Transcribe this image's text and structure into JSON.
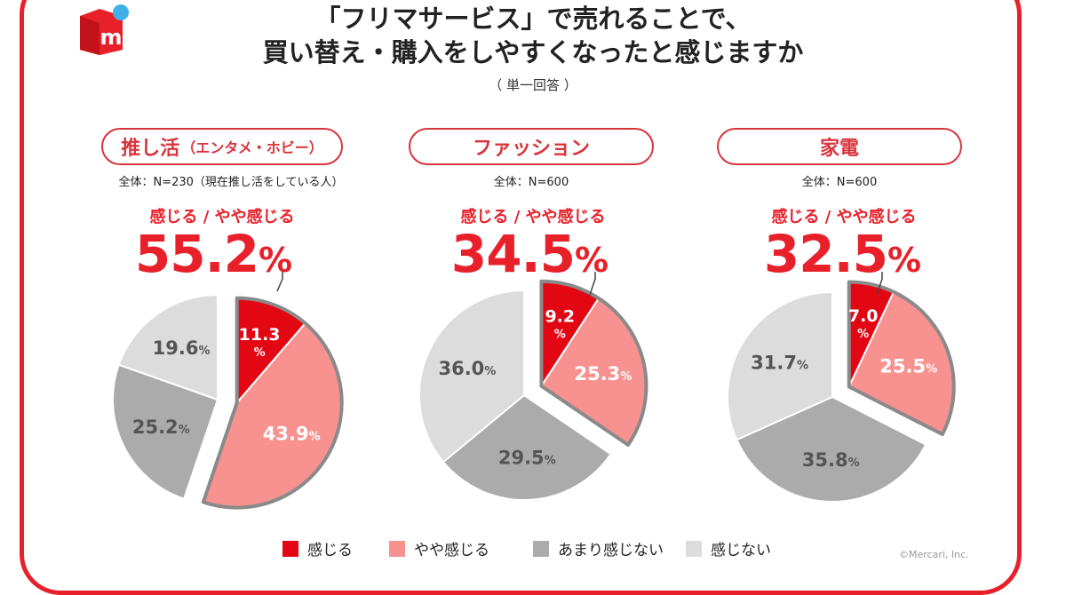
{
  "title": {
    "line1": "「フリマサービス」で売れることで、",
    "line2": "買い替え・購入をしやすくなったと感じますか",
    "note": "（ 単一回答 ）"
  },
  "brand": {
    "logo_letter": "m",
    "accent": "#e8202a",
    "dot_color": "#3fb0e8"
  },
  "colors": {
    "kanjiru": "#e30613",
    "yaya": "#f79290",
    "amari": "#ababab",
    "kanjinai": "#dcdcdc"
  },
  "legend": [
    {
      "label": "感じる",
      "color": "#e30613"
    },
    {
      "label": "やや感じる",
      "color": "#f79290"
    },
    {
      "label": "あまり感じない",
      "color": "#ababab"
    },
    {
      "label": "感じない",
      "color": "#dcdcdc"
    }
  ],
  "credit": "©Mercari, Inc.",
  "chart_data": [
    {
      "type": "pie",
      "title": "推し活",
      "title_note": "（エンタメ・ホビー）",
      "sample": "全体：N=230（現在推し活をしている人）",
      "agree_label": "感じる /  やや感じる",
      "agree_value": "55.2",
      "unit": "%",
      "categories": [
        "感じる",
        "やや感じる",
        "あまり感じない",
        "感じない"
      ],
      "values": [
        11.3,
        43.9,
        25.2,
        19.6
      ],
      "labels": [
        "11.3",
        "43.9",
        "25.2",
        "19.6"
      ]
    },
    {
      "type": "pie",
      "title": "ファッション",
      "sample": "全体：N=600",
      "agree_label": "感じる /  やや感じる",
      "agree_value": "34.5",
      "unit": "%",
      "categories": [
        "感じる",
        "やや感じる",
        "あまり感じない",
        "感じない"
      ],
      "values": [
        9.2,
        25.3,
        29.5,
        36.0
      ],
      "labels": [
        "9.2",
        "25.3",
        "29.5",
        "36.0"
      ]
    },
    {
      "type": "pie",
      "title": "家電",
      "sample": "全体：N=600",
      "agree_label": "感じる /  やや感じる",
      "agree_value": "32.5",
      "unit": "%",
      "categories": [
        "感じる",
        "やや感じる",
        "あまり感じない",
        "感じない"
      ],
      "values": [
        7.0,
        25.5,
        35.8,
        31.7
      ],
      "labels": [
        "7.0",
        "25.5",
        "35.8",
        "31.7"
      ]
    }
  ]
}
